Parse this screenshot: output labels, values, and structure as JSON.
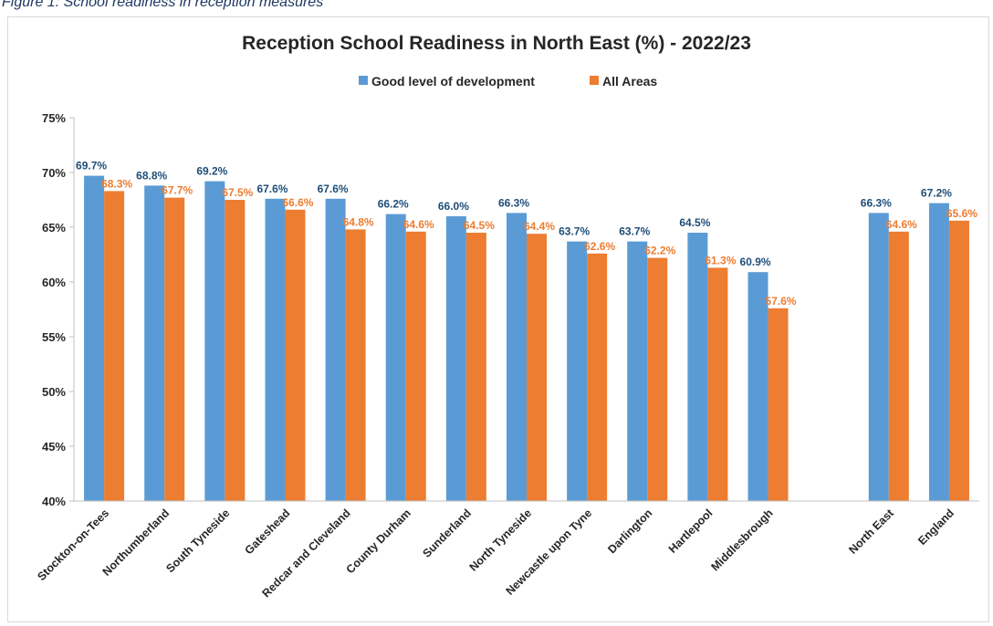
{
  "caption": "Figure 1: School readiness in reception measures",
  "colors": {
    "series1": "#5b9bd5",
    "series2": "#ed7d31",
    "label1": "#1f4e79",
    "label2": "#ed7d31",
    "axis": "#bfbfbf",
    "text": "#262626"
  },
  "chart_data": {
    "type": "bar",
    "title": "Reception School Readiness in North East (%) - 2022/23",
    "legend_position": "top",
    "grid": false,
    "ylim": [
      40,
      75
    ],
    "yticks": [
      "40%",
      "45%",
      "50%",
      "55%",
      "60%",
      "65%",
      "70%",
      "75%"
    ],
    "categories": [
      "Stockton-on-Tees",
      "Northumberland",
      "South Tyneside",
      "Gateshead",
      "Redcar and Cleveland",
      "County Durham",
      "Sunderland",
      "North Tyneside",
      "Newcastle upon Tyne",
      "Darlington",
      "Hartlepool",
      "Middlesbrough",
      "North East",
      "England"
    ],
    "series": [
      {
        "name": "Good level of development",
        "values": [
          69.7,
          68.8,
          69.2,
          67.6,
          67.6,
          66.2,
          66.0,
          66.3,
          63.7,
          63.7,
          64.5,
          60.9,
          66.3,
          67.2
        ],
        "labels": [
          "69.7%",
          "68.8%",
          "69.2%",
          "67.6%",
          "67.6%",
          "66.2%",
          "66.0%",
          "66.3%",
          "63.7%",
          "63.7%",
          "64.5%",
          "60.9%",
          "66.3%",
          "67.2%"
        ]
      },
      {
        "name": "All Areas",
        "values": [
          68.3,
          67.7,
          67.5,
          66.6,
          64.8,
          64.6,
          64.5,
          64.4,
          62.6,
          62.2,
          61.3,
          57.6,
          64.6,
          65.6
        ],
        "labels": [
          "68.3%",
          "67.7%",
          "67.5%",
          "66.6%",
          "64.8%",
          "64.6%",
          "64.5%",
          "64.4%",
          "62.6%",
          "62.2%",
          "61.3%",
          "57.6%",
          "64.6%",
          "65.6%"
        ]
      }
    ]
  }
}
